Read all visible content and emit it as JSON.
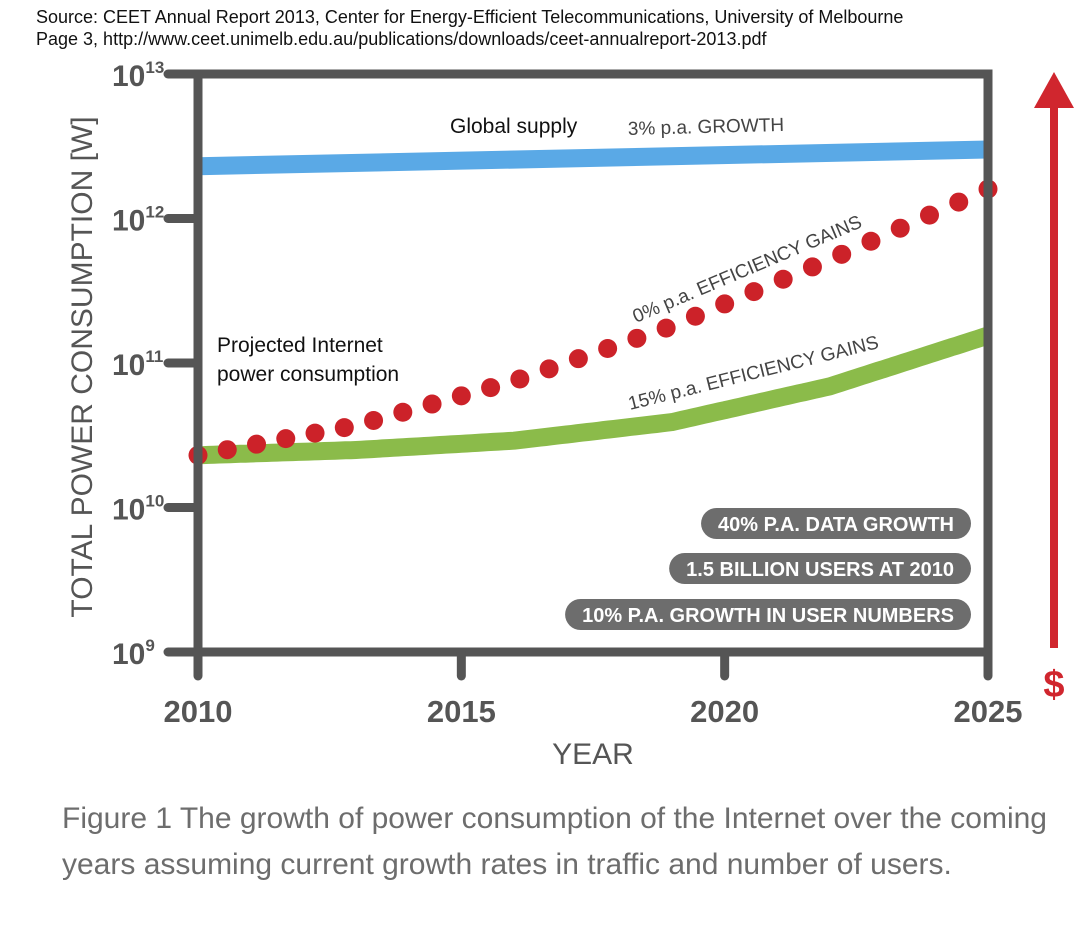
{
  "source": {
    "line1": "Source: CEET Annual Report 2013, Center for Energy-Efficient Telecommunications, University of Melbourne",
    "line2": "Page 3, http://www.ceet.unimelb.edu.au/publications/downloads/ceet-annualreport-2013.pdf"
  },
  "caption": {
    "line1": "Figure 1 The growth of power consumption of the Internet over the coming",
    "line2": "years assuming current growth rates in traffic and number of users."
  },
  "colors": {
    "axis": "#555555",
    "global_supply": "#5aa9e6",
    "efficiency_15": "#8bbb4a",
    "efficiency_0": "#cc2229",
    "arrow": "#d0262e",
    "badge_bg": "#6d6d6d",
    "badge_text": "#ffffff"
  },
  "chart_data": {
    "type": "line",
    "xlabel": "YEAR",
    "ylabel": "TOTAL POWER CONSUMPTION [W]",
    "xlim": [
      2010,
      2025
    ],
    "ylim": [
      1000000000.0,
      10000000000000.0
    ],
    "y_scale": "log",
    "x_ticks": [
      "2010",
      "2015",
      "2020",
      "2025"
    ],
    "y_ticks": [
      {
        "base": "10",
        "exp": "9",
        "value": 1000000000.0
      },
      {
        "base": "10",
        "exp": "10",
        "value": 10000000000.0
      },
      {
        "base": "10",
        "exp": "11",
        "value": 100000000000.0
      },
      {
        "base": "10",
        "exp": "12",
        "value": 1000000000000.0
      },
      {
        "base": "10",
        "exp": "13",
        "value": 10000000000000.0
      }
    ],
    "series": [
      {
        "key": "global",
        "style": "band",
        "x": [
          2010,
          2025
        ],
        "y": [
          2300000000000.0,
          3000000000000.0
        ]
      },
      {
        "key": "eff0",
        "style": "dots",
        "x": [
          2010,
          2013,
          2016,
          2019,
          2022,
          2025
        ],
        "y": [
          23000000000.0,
          37000000000.0,
          75000000000.0,
          180000000000.0,
          520000000000.0,
          1600000000000.0
        ]
      },
      {
        "key": "eff15",
        "style": "band",
        "x": [
          2010,
          2013,
          2016,
          2019,
          2022,
          2025
        ],
        "y": [
          23000000000.0,
          25000000000.0,
          29000000000.0,
          39000000000.0,
          69000000000.0,
          155000000000.0
        ]
      }
    ],
    "annotations": {
      "global_supply": "Global supply",
      "global_growth": "3% p.a. GROWTH",
      "projected_line1": "Projected Internet",
      "projected_line2": "power consumption",
      "eff0": "0% p.a. EFFICIENCY GAINS",
      "eff15": "15% p.a. EFFICIENCY GAINS",
      "currency": "$"
    },
    "badges": [
      "40% P.A. DATA GROWTH",
      "1.5 BILLION USERS AT 2010",
      "10% P.A. GROWTH IN USER NUMBERS"
    ]
  }
}
